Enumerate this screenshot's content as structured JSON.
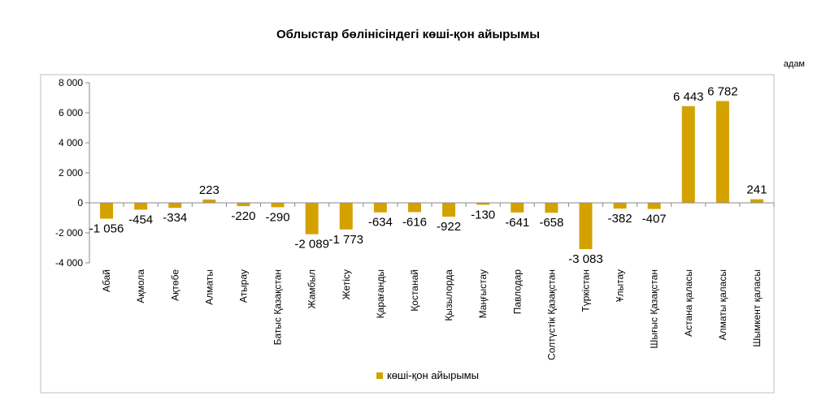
{
  "chart_data": {
    "type": "bar",
    "title": "Облыстар бөлінісіндегі көші-қон айырымы",
    "unit_label": "адам",
    "categories": [
      "Абай",
      "Ақмола",
      "Ақтөбе",
      "Алматы",
      "Атырау",
      "Батыс Қазақстан",
      "Жамбыл",
      "Жетісу",
      "Қарағанды",
      "Қостанай",
      "Қызылорда",
      "Маңғыстау",
      "Павлодар",
      "Солтүстік Қазақстан",
      "Түркістан",
      "Ұлытау",
      "Шығыс Қазақстан",
      "Астана қаласы",
      "Алматы қаласы",
      "Шымкент қаласы"
    ],
    "series": [
      {
        "name": "көші-қон айырымы",
        "values": [
          -1056,
          -454,
          -334,
          223,
          -220,
          -290,
          -2089,
          -1773,
          -634,
          -616,
          -922,
          -130,
          -641,
          -658,
          -3083,
          -382,
          -407,
          6443,
          6782,
          241
        ],
        "labels": [
          "-1 056",
          "-454",
          "-334",
          "223",
          "-220",
          "-290",
          "-2 089",
          "-1 773",
          "-634",
          "-616",
          "-922",
          "-130",
          "-641",
          "-658",
          "-3 083",
          "-382",
          "-407",
          "6 443",
          "6 782",
          "241"
        ]
      }
    ],
    "ylim": [
      -4000,
      8000
    ],
    "yticks": [
      8000,
      6000,
      4000,
      2000,
      0,
      -2000,
      -4000
    ],
    "ytick_labels": [
      "8 000",
      "6 000",
      "4 000",
      "2 000",
      "0",
      "-2 000",
      "-4 000"
    ],
    "grid": false,
    "legend_position": "bottom",
    "colors": {
      "bar": "#D4A200",
      "axis": "#888888",
      "border": "#BFBFBF"
    }
  }
}
